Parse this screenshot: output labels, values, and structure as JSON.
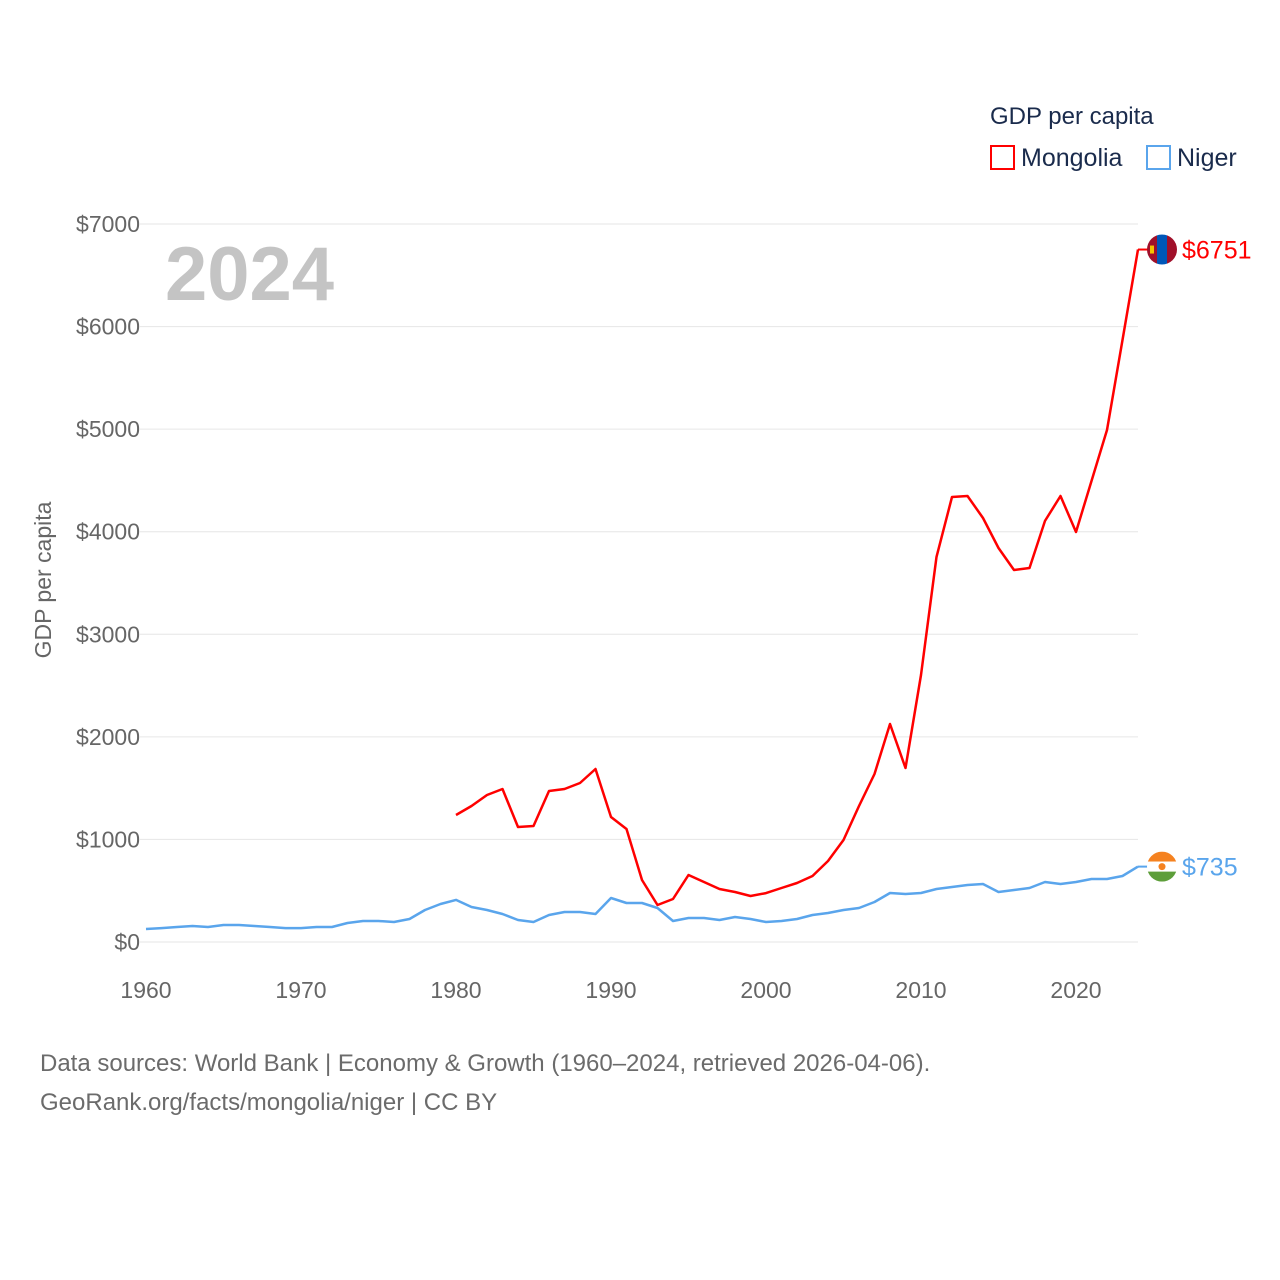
{
  "chart_data": {
    "type": "line",
    "title": "GDP per capita",
    "ylabel": "GDP per capita",
    "xlabel": "",
    "year_label": "2024",
    "xlim": [
      1960,
      2024
    ],
    "ylim": [
      0,
      7000
    ],
    "x_ticks": [
      1960,
      1970,
      1980,
      1990,
      2000,
      2010,
      2020
    ],
    "x_tick_labels": [
      "1960",
      "1970",
      "1980",
      "1990",
      "2000",
      "2010",
      "2020"
    ],
    "y_ticks": [
      0,
      1000,
      2000,
      3000,
      4000,
      5000,
      6000,
      7000
    ],
    "y_tick_labels": [
      "$0",
      "$1000",
      "$2000",
      "$3000",
      "$4000",
      "$5000",
      "$6000",
      "$7000"
    ],
    "grid": true,
    "legend_placement": "top-right",
    "series": [
      {
        "name": "Mongolia",
        "color": "#ff0000",
        "end_label": "$6751",
        "flag": "mongolia-flag",
        "start_year": 1980,
        "values": [
          1238,
          1326,
          1433,
          1492,
          1121,
          1131,
          1472,
          1492,
          1550,
          1687,
          1219,
          1102,
          604,
          361,
          419,
          653,
          585,
          517,
          487,
          448,
          477,
          526,
          575,
          643,
          790,
          994,
          1326,
          1638,
          2125,
          1696,
          2603,
          3754,
          4338,
          4348,
          4134,
          3841,
          3627,
          3646,
          4105,
          4348,
          3997,
          4494,
          4992,
          5869,
          6751
        ]
      },
      {
        "name": "Niger",
        "color": "#5aa5ec",
        "end_label": "$735",
        "flag": "niger-flag",
        "start_year": 1960,
        "values": [
          127,
          136,
          146,
          156,
          146,
          166,
          166,
          156,
          146,
          136,
          136,
          146,
          146,
          185,
          205,
          205,
          195,
          224,
          312,
          370,
          410,
          341,
          312,
          273,
          214,
          195,
          263,
          292,
          292,
          273,
          429,
          380,
          380,
          331,
          205,
          234,
          234,
          214,
          244,
          224,
          195,
          205,
          224,
          263,
          283,
          312,
          331,
          390,
          478,
          468,
          478,
          517,
          536,
          556,
          565,
          487,
          507,
          526,
          585,
          565,
          585,
          614,
          614,
          643,
          735
        ]
      }
    ]
  },
  "footer": {
    "line1": "Data sources: World Bank | Economy & Growth (1960–2024, retrieved 2026-04-06).",
    "line2": "GeoRank.org/facts/mongolia/niger | CC BY"
  }
}
